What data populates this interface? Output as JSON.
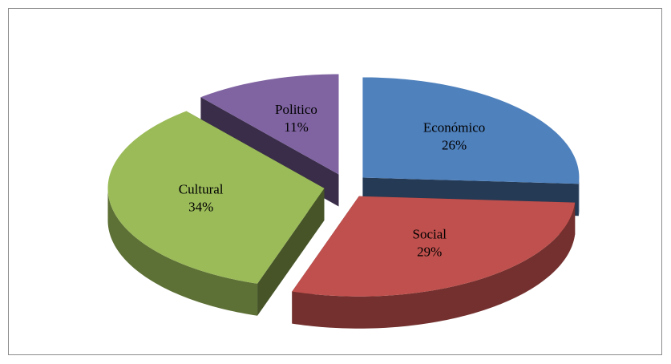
{
  "chart_data": {
    "type": "pie3d",
    "exploded": true,
    "categories": [
      "Económico",
      "Social",
      "Cultural",
      "Politico"
    ],
    "values": [
      26,
      29,
      34,
      11
    ],
    "value_labels": [
      "26%",
      "29%",
      "34%",
      "11%"
    ],
    "colors": [
      "#4f81bd",
      "#c0504d",
      "#9bbb59",
      "#8064a2"
    ]
  }
}
